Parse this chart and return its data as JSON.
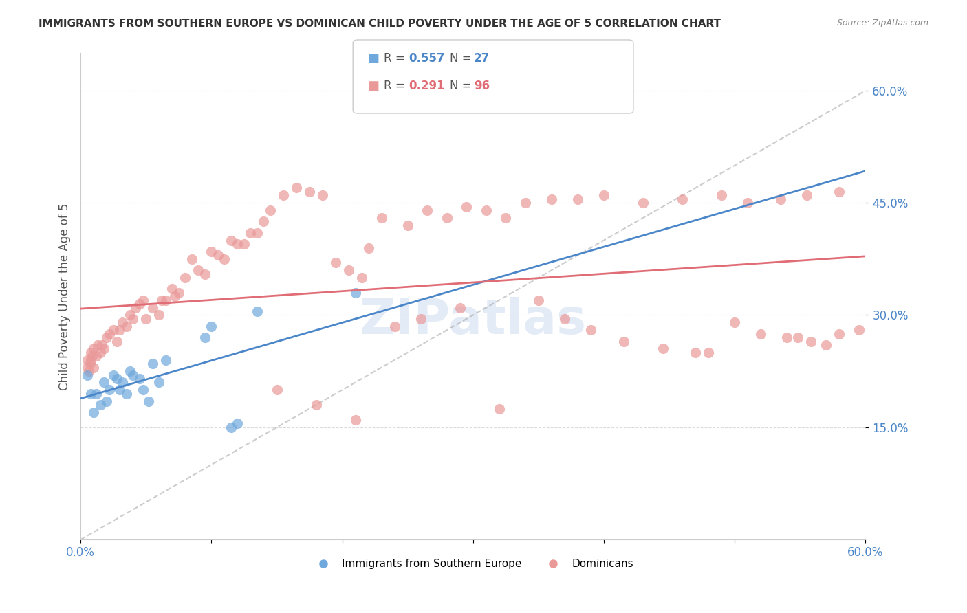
{
  "title": "IMMIGRANTS FROM SOUTHERN EUROPE VS DOMINICAN CHILD POVERTY UNDER THE AGE OF 5 CORRELATION CHART",
  "source": "Source: ZipAtlas.com",
  "ylabel": "Child Poverty Under the Age of 5",
  "xlim": [
    0.0,
    0.6
  ],
  "ylim": [
    0.0,
    0.65
  ],
  "ytick_positions": [
    0.15,
    0.3,
    0.45,
    0.6
  ],
  "ytick_labels": [
    "15.0%",
    "30.0%",
    "45.0%",
    "60.0%"
  ],
  "legend1_label": "Immigrants from Southern Europe",
  "legend2_label": "Dominicans",
  "r1": 0.557,
  "n1": 27,
  "r2": 0.291,
  "n2": 96,
  "blue_color": "#6fa8dc",
  "pink_color": "#ea9999",
  "blue_line_color": "#4a86c8",
  "pink_line_color": "#e06c75",
  "dashed_line_color": "#aaaaaa",
  "title_color": "#333333",
  "axis_label_color": "#555555",
  "tick_label_color": "#4a86c8",
  "watermark_color": "#c8d8f0",
  "grid_color": "#cccccc",
  "background_color": "#ffffff",
  "blue_scatter_x": [
    0.005,
    0.008,
    0.01,
    0.012,
    0.015,
    0.018,
    0.02,
    0.022,
    0.025,
    0.028,
    0.03,
    0.032,
    0.035,
    0.038,
    0.04,
    0.045,
    0.048,
    0.052,
    0.055,
    0.06,
    0.065,
    0.095,
    0.1,
    0.115,
    0.12,
    0.135,
    0.21
  ],
  "blue_scatter_y": [
    0.22,
    0.195,
    0.17,
    0.195,
    0.18,
    0.21,
    0.185,
    0.2,
    0.22,
    0.215,
    0.2,
    0.21,
    0.195,
    0.225,
    0.22,
    0.215,
    0.2,
    0.185,
    0.235,
    0.21,
    0.24,
    0.27,
    0.285,
    0.15,
    0.155,
    0.305,
    0.33
  ],
  "pink_scatter_x": [
    0.005,
    0.005,
    0.006,
    0.007,
    0.008,
    0.008,
    0.009,
    0.01,
    0.01,
    0.012,
    0.013,
    0.015,
    0.016,
    0.018,
    0.02,
    0.022,
    0.025,
    0.028,
    0.03,
    0.032,
    0.035,
    0.038,
    0.04,
    0.042,
    0.045,
    0.048,
    0.05,
    0.055,
    0.06,
    0.062,
    0.065,
    0.07,
    0.072,
    0.075,
    0.08,
    0.085,
    0.09,
    0.095,
    0.1,
    0.105,
    0.11,
    0.115,
    0.12,
    0.125,
    0.13,
    0.135,
    0.14,
    0.145,
    0.155,
    0.165,
    0.175,
    0.185,
    0.195,
    0.205,
    0.215,
    0.22,
    0.23,
    0.25,
    0.265,
    0.28,
    0.295,
    0.31,
    0.325,
    0.34,
    0.36,
    0.38,
    0.4,
    0.43,
    0.46,
    0.49,
    0.51,
    0.535,
    0.555,
    0.58,
    0.54,
    0.48,
    0.32,
    0.21,
    0.18,
    0.15,
    0.24,
    0.26,
    0.29,
    0.35,
    0.37,
    0.39,
    0.415,
    0.445,
    0.47,
    0.5,
    0.52,
    0.548,
    0.558,
    0.57,
    0.58,
    0.595
  ],
  "pink_scatter_y": [
    0.23,
    0.24,
    0.225,
    0.235,
    0.24,
    0.25,
    0.245,
    0.23,
    0.255,
    0.245,
    0.26,
    0.25,
    0.26,
    0.255,
    0.27,
    0.275,
    0.28,
    0.265,
    0.28,
    0.29,
    0.285,
    0.3,
    0.295,
    0.31,
    0.315,
    0.32,
    0.295,
    0.31,
    0.3,
    0.32,
    0.32,
    0.335,
    0.325,
    0.33,
    0.35,
    0.375,
    0.36,
    0.355,
    0.385,
    0.38,
    0.375,
    0.4,
    0.395,
    0.395,
    0.41,
    0.41,
    0.425,
    0.44,
    0.46,
    0.47,
    0.465,
    0.46,
    0.37,
    0.36,
    0.35,
    0.39,
    0.43,
    0.42,
    0.44,
    0.43,
    0.445,
    0.44,
    0.43,
    0.45,
    0.455,
    0.455,
    0.46,
    0.45,
    0.455,
    0.46,
    0.45,
    0.455,
    0.46,
    0.465,
    0.27,
    0.25,
    0.175,
    0.16,
    0.18,
    0.2,
    0.285,
    0.295,
    0.31,
    0.32,
    0.295,
    0.28,
    0.265,
    0.255,
    0.25,
    0.29,
    0.275,
    0.27,
    0.265,
    0.26,
    0.275,
    0.28
  ]
}
